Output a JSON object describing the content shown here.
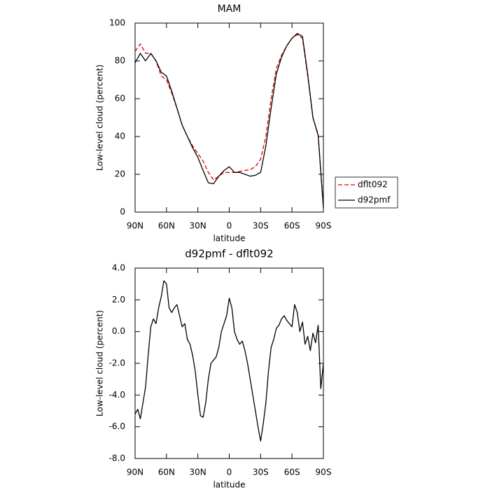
{
  "chart_data": [
    {
      "type": "line",
      "title": "MAM",
      "x_label": "latitude",
      "y_label": "Low-level cloud (percent)",
      "x": [
        90,
        85,
        80,
        75,
        70,
        65,
        60,
        55,
        50,
        45,
        40,
        35,
        30,
        25,
        20,
        15,
        10,
        5,
        0,
        -5,
        -10,
        -15,
        -20,
        -25,
        -30,
        -35,
        -40,
        -45,
        -50,
        -55,
        -60,
        -65,
        -70,
        -75,
        -80,
        -85,
        -90
      ],
      "series": [
        {
          "name": "dflt092",
          "color": "#e00000",
          "dash": true,
          "values": [
            85,
            89,
            84,
            84,
            80,
            72,
            70,
            63,
            55,
            46,
            40,
            35,
            31,
            27,
            21,
            17,
            19,
            21,
            21,
            21,
            21.5,
            22,
            22.5,
            24,
            28,
            40,
            60,
            76,
            83,
            88,
            92,
            94,
            92,
            72,
            50,
            41,
            3
          ]
        },
        {
          "name": "d92pmf",
          "color": "#000000",
          "dash": false,
          "values": [
            79,
            84,
            80,
            84,
            80,
            74,
            72,
            64,
            55,
            46,
            40,
            34,
            29,
            22,
            15.5,
            15,
            19,
            22,
            24,
            21,
            21,
            20,
            19,
            19.5,
            21,
            35,
            55,
            73,
            82,
            88,
            92,
            94.5,
            93,
            73,
            50,
            40.5,
            2
          ]
        }
      ],
      "xlim": [
        90,
        -90
      ],
      "xticks": [
        {
          "value": 90,
          "label": "90N"
        },
        {
          "value": 60,
          "label": "60N"
        },
        {
          "value": 30,
          "label": "30N"
        },
        0,
        {
          "value": -30,
          "label": "30S"
        },
        {
          "value": -60,
          "label": "60S"
        },
        {
          "value": -90,
          "label": "90S"
        }
      ],
      "ylim": [
        0,
        100
      ],
      "yticks": [
        0,
        20,
        40,
        60,
        80,
        100
      ],
      "legend": "right"
    },
    {
      "type": "line",
      "title": "d92pmf - dflt092",
      "x_label": "latitude",
      "y_label": "Low-level cloud (percent)",
      "x": [
        90,
        87.5,
        85,
        82.5,
        80,
        77.5,
        75,
        72.5,
        70,
        67.5,
        65,
        62.5,
        60,
        57.5,
        55,
        52.5,
        50,
        47.5,
        45,
        42.5,
        40,
        37.5,
        35,
        32.5,
        30,
        27.5,
        25,
        22.5,
        20,
        17.5,
        15,
        12.5,
        10,
        7.5,
        5,
        2.5,
        0,
        -2.5,
        -5,
        -7.5,
        -10,
        -12.5,
        -15,
        -17.5,
        -20,
        -22.5,
        -25,
        -27.5,
        -30,
        -32.5,
        -35,
        -37.5,
        -40,
        -42.5,
        -45,
        -47.5,
        -50,
        -52.5,
        -55,
        -57.5,
        -60,
        -62.5,
        -65,
        -67.5,
        -70,
        -72.5,
        -75,
        -77.5,
        -80,
        -82.5,
        -85,
        -87.5,
        -90
      ],
      "series": [
        {
          "color": "#000000",
          "dash": false,
          "values": [
            -5.2,
            -4.9,
            -5.5,
            -4.5,
            -3.5,
            -1.5,
            0.3,
            0.8,
            0.5,
            1.5,
            2.2,
            3.2,
            3.0,
            1.5,
            1.2,
            1.5,
            1.7,
            1.0,
            0.3,
            0.5,
            -0.5,
            -0.8,
            -1.5,
            -2.5,
            -4.0,
            -5.3,
            -5.4,
            -4.5,
            -3.0,
            -2.0,
            -1.8,
            -1.6,
            -1.0,
            0.0,
            0.5,
            1.0,
            2.1,
            1.5,
            0.0,
            -0.5,
            -0.8,
            -0.6,
            -1.2,
            -2.0,
            -3.0,
            -4.0,
            -5.0,
            -6.0,
            -6.9,
            -5.8,
            -4.5,
            -2.5,
            -1.0,
            -0.5,
            0.2,
            0.4,
            0.8,
            1.0,
            0.7,
            0.5,
            0.3,
            1.7,
            1.2,
            0.0,
            0.6,
            -0.8,
            -0.3,
            -1.2,
            -0.1,
            -0.7,
            0.4,
            -3.6,
            -2.0
          ]
        }
      ],
      "xlim": [
        90,
        -90
      ],
      "xticks": [
        {
          "value": 90,
          "label": "90N"
        },
        {
          "value": 60,
          "label": "60N"
        },
        {
          "value": 30,
          "label": "30N"
        },
        0,
        {
          "value": -30,
          "label": "30S"
        },
        {
          "value": -60,
          "label": "60S"
        },
        {
          "value": -90,
          "label": "90S"
        }
      ],
      "ylim": [
        -8,
        4
      ],
      "yticks": [
        {
          "value": -8,
          "label": "-8.0"
        },
        {
          "value": -6,
          "label": "-6.0"
        },
        {
          "value": -4,
          "label": "-4.0"
        },
        {
          "value": -2,
          "label": "-2.0"
        },
        {
          "value": 0,
          "label": "0.0"
        },
        {
          "value": 2,
          "label": "2.0"
        },
        {
          "value": 4,
          "label": "4.0"
        }
      ]
    }
  ]
}
